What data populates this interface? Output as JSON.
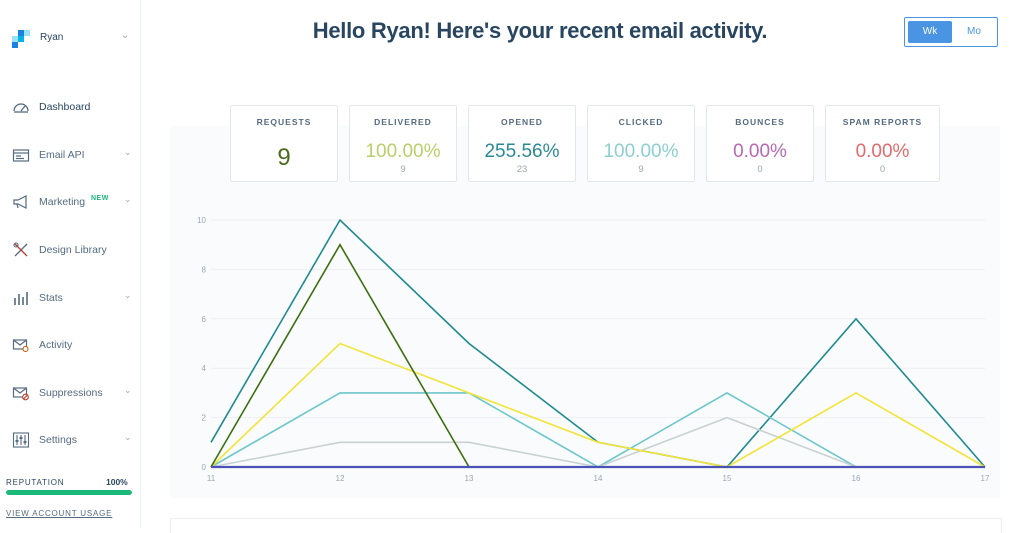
{
  "account": {
    "name": "Ryan"
  },
  "sidebar": {
    "items": [
      {
        "label": "Dashboard",
        "icon": "dashboard-gauge-icon",
        "active": true
      },
      {
        "label": "Email API",
        "icon": "email-api-icon",
        "chevron": true
      },
      {
        "label": "Marketing",
        "icon": "megaphone-icon",
        "badge": "NEW",
        "chevron": true
      },
      {
        "label": "Design Library",
        "icon": "design-tools-icon"
      },
      {
        "label": "Stats",
        "icon": "bar-stats-icon",
        "chevron": true
      },
      {
        "label": "Activity",
        "icon": "envelope-search-icon"
      },
      {
        "label": "Suppressions",
        "icon": "envelope-block-icon",
        "chevron": true
      },
      {
        "label": "Settings",
        "icon": "sliders-icon",
        "chevron": true
      }
    ],
    "reputation": {
      "label": "REPUTATION",
      "value": "100%",
      "fraction": 1.0
    },
    "view_usage": "VIEW ACCOUNT USAGE"
  },
  "header": {
    "title": "Hello Ryan! Here's your recent email activity."
  },
  "period_toggle": {
    "week": "Wk",
    "month": "Mo",
    "selected": "Wk"
  },
  "stats": [
    {
      "label": "REQUESTS",
      "value": "9",
      "count": "",
      "color": "#4b6b1e"
    },
    {
      "label": "DELIVERED",
      "value": "100.00%",
      "count": "9",
      "color": "#b9cf6a"
    },
    {
      "label": "OPENED",
      "value": "255.56%",
      "count": "23",
      "color": "#2a8a93"
    },
    {
      "label": "CLICKED",
      "value": "100.00%",
      "count": "9",
      "color": "#8ccfd2"
    },
    {
      "label": "BOUNCES",
      "value": "0.00%",
      "count": "0",
      "color": "#b769b0"
    },
    {
      "label": "SPAM REPORTS",
      "value": "0.00%",
      "count": "0",
      "color": "#e06b6b"
    }
  ],
  "chart_data": {
    "type": "line",
    "x": [
      "11",
      "12",
      "13",
      "14",
      "15",
      "16",
      "17"
    ],
    "ylim": [
      0,
      10
    ],
    "yticks": [
      "0",
      "2",
      "4",
      "6",
      "8",
      "10"
    ],
    "grid": true,
    "series": [
      {
        "color": "#1f8a8f",
        "values": [
          1,
          10,
          5,
          1,
          0,
          6,
          0
        ]
      },
      {
        "color": "#6cc6cc",
        "values": [
          0,
          3,
          3,
          0,
          3,
          0,
          0
        ]
      },
      {
        "color": "#c9d2d2",
        "values": [
          0,
          1,
          1,
          0,
          2,
          0,
          0
        ]
      },
      {
        "color": "#f2e43a",
        "values": [
          0,
          5,
          3,
          1,
          0,
          3,
          0
        ]
      },
      {
        "color": "#3d6e0e",
        "values": [
          0,
          9,
          0,
          null,
          null,
          null,
          null
        ]
      },
      {
        "color": "#4b52b5",
        "values": [
          0,
          0,
          0,
          0,
          0,
          0,
          0
        ]
      }
    ]
  }
}
